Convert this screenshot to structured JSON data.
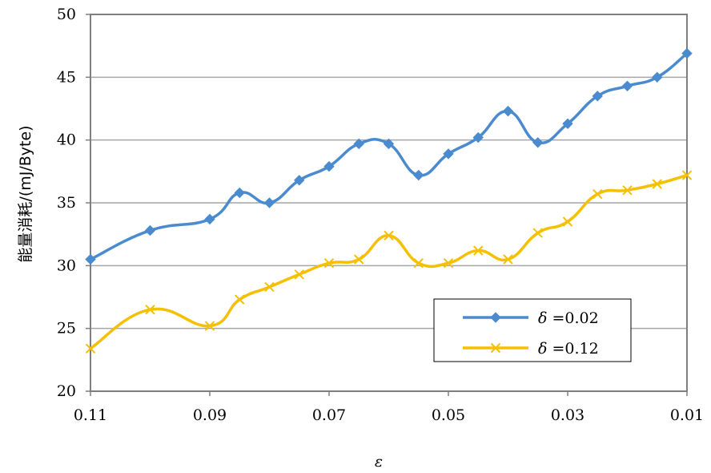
{
  "chart_data": {
    "type": "line",
    "xlabel": "ε",
    "ylabel": "能量消耗/(mJ/Byte)",
    "xlim": [
      0.11,
      0.01
    ],
    "ylim": [
      20,
      50
    ],
    "x_ticks": [
      "0.11",
      "0.09",
      "0.07",
      "0.05",
      "0.03",
      "0.01"
    ],
    "y_ticks": [
      "20",
      "25",
      "30",
      "35",
      "40",
      "45",
      "50"
    ],
    "grid": true,
    "legend_position": "bottom-right",
    "x": [
      0.11,
      0.1,
      0.09,
      0.085,
      0.08,
      0.075,
      0.07,
      0.065,
      0.06,
      0.055,
      0.05,
      0.045,
      0.04,
      0.035,
      0.03,
      0.025,
      0.02,
      0.015,
      0.01
    ],
    "series": [
      {
        "name": "δ =0.02",
        "symbol": "δ",
        "value_label": " =0.02",
        "color": "#4a8bd0",
        "marker": "diamond",
        "x": [
          0.11,
          0.1,
          0.09,
          0.085,
          0.08,
          0.075,
          0.07,
          0.065,
          0.06,
          0.055,
          0.05,
          0.045,
          0.04,
          0.035,
          0.03,
          0.025,
          0.02,
          0.015,
          0.01
        ],
        "values": [
          30.5,
          32.8,
          33.7,
          35.8,
          35.0,
          36.8,
          37.9,
          39.7,
          39.7,
          37.2,
          38.9,
          40.2,
          42.3,
          39.8,
          41.3,
          43.5,
          44.3,
          45.0,
          46.9
        ]
      },
      {
        "name": "δ =0.12",
        "symbol": "δ",
        "value_label": " =0.12",
        "color": "#f5c000",
        "marker": "x",
        "x": [
          0.11,
          0.1,
          0.09,
          0.085,
          0.08,
          0.075,
          0.07,
          0.065,
          0.06,
          0.055,
          0.05,
          0.045,
          0.04,
          0.035,
          0.03,
          0.025,
          0.02,
          0.015,
          0.01
        ],
        "values": [
          23.4,
          26.5,
          25.2,
          27.3,
          28.3,
          29.3,
          30.2,
          30.5,
          32.4,
          30.2,
          30.2,
          31.2,
          30.5,
          32.6,
          33.5,
          35.7,
          36.0,
          36.5,
          37.2
        ]
      }
    ],
    "colors": {
      "grid": "#a6a6a6",
      "axis": "#7f7f7f",
      "legend_border": "#000000"
    }
  }
}
